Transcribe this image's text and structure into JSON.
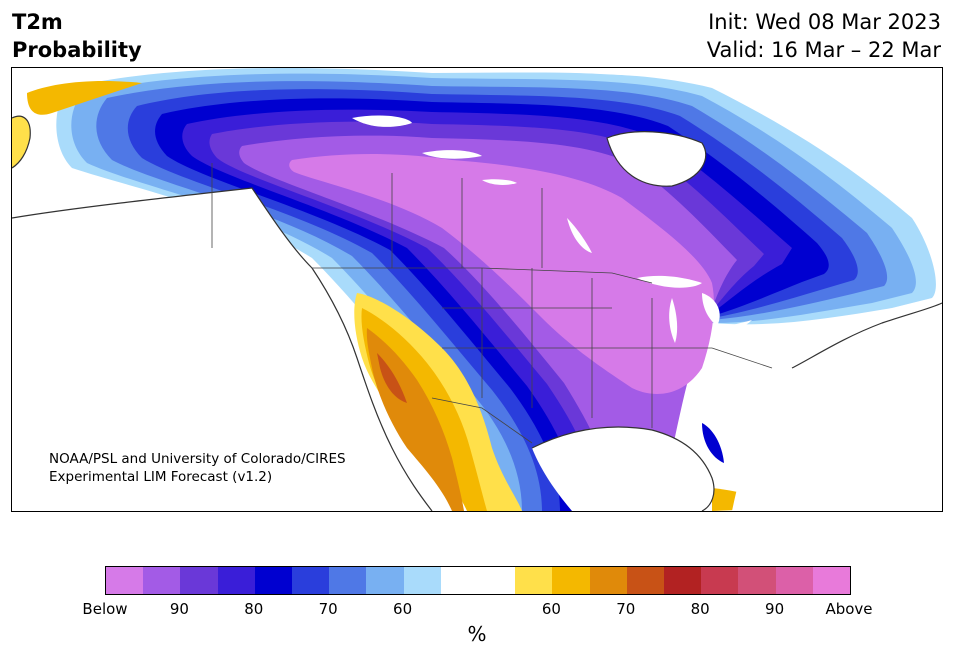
{
  "header": {
    "variable": "T2m",
    "product": "Probability",
    "init": "Init: Wed 08 Mar 2023",
    "valid": "Valid: 16 Mar – 22 Mar"
  },
  "credit": {
    "line1": "NOAA/PSL and University of Colorado/CIRES",
    "line2": "Experimental LIM Forecast (v1.2)"
  },
  "colorbar": {
    "unit": "%",
    "colors": [
      "#d67ae8",
      "#a35be6",
      "#6a38d8",
      "#3a1ed8",
      "#0000d0",
      "#2a3edc",
      "#4f78e6",
      "#78b0f2",
      "#a9dbfb",
      "#ffffff",
      "#ffffff",
      "#ffe04a",
      "#f4b800",
      "#e08a0a",
      "#c85216",
      "#b22222",
      "#c83a50",
      "#d25078",
      "#dc60a8",
      "#e87ada"
    ],
    "ticks": [
      "Below",
      "90",
      "80",
      "70",
      "60",
      "60",
      "70",
      "80",
      "90",
      "Above"
    ]
  }
}
